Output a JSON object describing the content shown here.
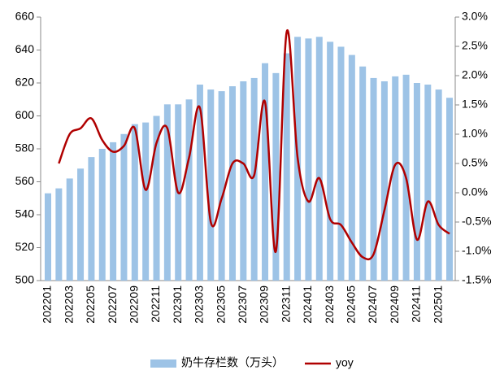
{
  "chart_data": {
    "type": "bar_line",
    "categories": [
      "202201",
      null,
      "202203",
      null,
      "202205",
      null,
      "202207",
      null,
      "202209",
      null,
      "202211",
      null,
      "202301",
      null,
      "202303",
      null,
      "202305",
      null,
      "202307",
      null,
      "202309",
      null,
      "202311",
      null,
      "202401",
      null,
      "202403",
      null,
      "202405",
      null,
      "202407",
      null,
      "202409",
      null,
      "202411",
      null,
      "202501",
      null
    ],
    "series": [
      {
        "name": "奶牛存栏数（万头）",
        "type": "bar",
        "color": "#9dc3e6",
        "values": [
          553,
          556,
          562,
          568,
          575,
          580,
          584,
          589,
          595,
          596,
          600,
          607,
          607,
          610,
          619,
          616,
          615,
          618,
          621,
          623,
          632,
          626,
          638,
          648,
          647,
          648,
          645,
          642,
          637,
          630,
          623,
          621,
          624,
          625,
          620,
          619,
          616,
          611
        ]
      },
      {
        "name": "yoy",
        "type": "line",
        "axis": "y2",
        "color": "#b00000",
        "values": [
          null,
          0.5,
          1.0,
          1.1,
          1.27,
          0.9,
          0.7,
          0.8,
          1.1,
          0.05,
          0.85,
          1.1,
          0.0,
          0.6,
          1.45,
          -0.5,
          -0.1,
          0.5,
          0.5,
          0.3,
          1.55,
          -1.0,
          2.75,
          0.6,
          -0.15,
          0.25,
          -0.45,
          -0.55,
          -0.85,
          -1.1,
          -1.05,
          -0.3,
          0.48,
          0.25,
          -0.8,
          -0.15,
          -0.55,
          -0.7
        ]
      }
    ],
    "ylim": [
      500,
      660
    ],
    "yticks": [
      500,
      520,
      540,
      560,
      580,
      600,
      620,
      640,
      660
    ],
    "y2lim": [
      -1.5,
      3.0
    ],
    "y2ticks": [
      {
        "value": -1.5,
        "label": "-1.5%"
      },
      {
        "value": -1.0,
        "label": "-1.0%"
      },
      {
        "value": -0.5,
        "label": "-0.5%"
      },
      {
        "value": 0,
        "label": "0.0%"
      },
      {
        "value": 0.5,
        "label": "0.5%"
      },
      {
        "value": 1.0,
        "label": "1.0%"
      },
      {
        "value": 1.5,
        "label": "1.5%"
      },
      {
        "value": 2.0,
        "label": "2.0%"
      },
      {
        "value": 2.5,
        "label": "2.5%"
      },
      {
        "value": 3.0,
        "label": "3.0%"
      }
    ],
    "legend": "bottom"
  }
}
